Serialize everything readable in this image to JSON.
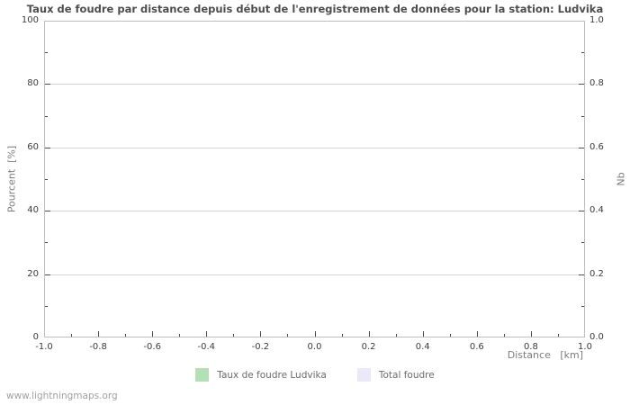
{
  "title": "Taux de foudre par distance depuis début de l'enregistrement de données pour la station: Ludvika",
  "footer_link": "www.lightningmaps.org",
  "legend": {
    "items": [
      {
        "label": "Taux de foudre Ludvika",
        "color": "#b5dfb5"
      },
      {
        "label": "Total foudre",
        "color": "#e9e9f8"
      }
    ]
  },
  "colors": {
    "grid": "#d4d4d4",
    "frame": "#bdbdbd",
    "tick": "#4a4a4a",
    "title_text": "#4d4d4d",
    "axis_label_text": "#7c7c7c",
    "tick_label_text": "#3c3c3c",
    "legend_text": "#6b6b6b",
    "footer_text": "#a0a0a0"
  },
  "chart_data": {
    "type": "bar",
    "title": "Taux de foudre par distance depuis début de l'enregistrement de données pour la station: Ludvika",
    "xlabel": "Distance   [km]",
    "ylabel_left": "Pourcent  [%]",
    "ylabel_right": "Nb",
    "xlim": [
      -1.0,
      1.0
    ],
    "ylim_left": [
      0,
      100
    ],
    "ylim_right": [
      0.0,
      1.0
    ],
    "x_ticks": [
      -1.0,
      -0.8,
      -0.6,
      -0.4,
      -0.2,
      0.0,
      0.2,
      0.4,
      0.6,
      0.8,
      1.0
    ],
    "x_tick_labels": [
      "-1.0",
      "-0.8",
      "-0.6",
      "-0.4",
      "-0.2",
      "0.0",
      "0.2",
      "0.4",
      "0.6",
      "0.8",
      "1.0"
    ],
    "y_ticks_left": [
      0,
      20,
      40,
      60,
      80,
      100
    ],
    "y_tick_labels_left": [
      "0",
      "20",
      "40",
      "60",
      "80",
      "100"
    ],
    "y_ticks_right": [
      0.0,
      0.2,
      0.4,
      0.6,
      0.8,
      1.0
    ],
    "y_tick_labels_right": [
      "0.0",
      "0.2",
      "0.4",
      "0.6",
      "0.8",
      "1.0"
    ],
    "grid": "horizontal-major",
    "legend_position": "bottom-center",
    "series": [
      {
        "name": "Taux de foudre Ludvika",
        "color": "#b5dfb5",
        "values": []
      },
      {
        "name": "Total foudre",
        "color": "#e9e9f8",
        "values": []
      }
    ]
  }
}
